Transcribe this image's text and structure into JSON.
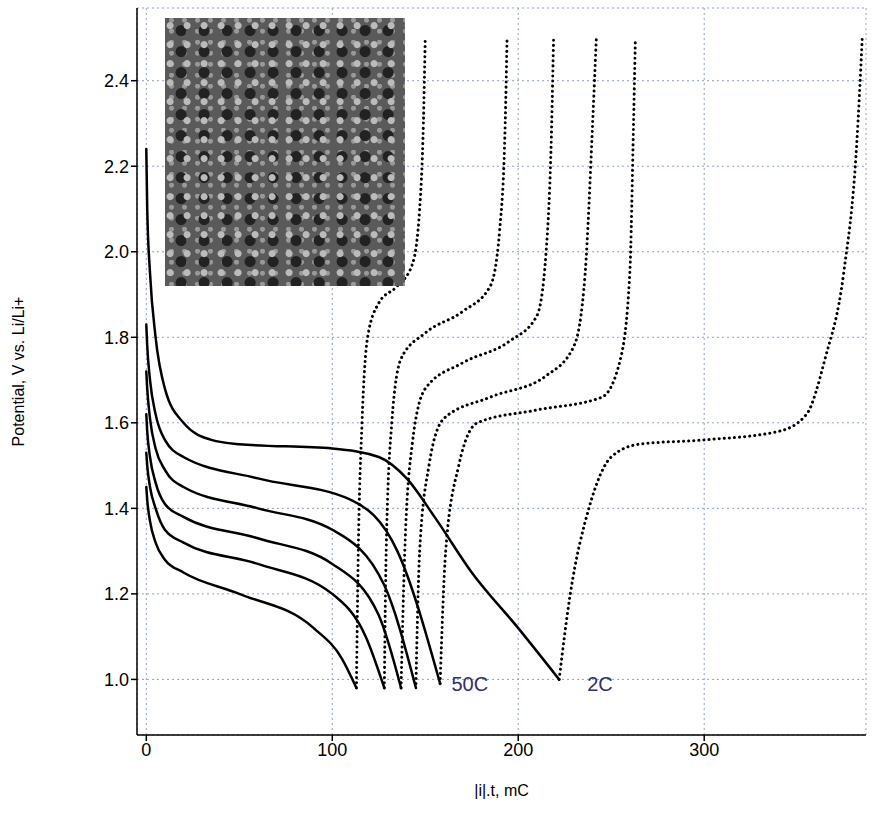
{
  "chart_data": {
    "type": "line",
    "x_label": "|i|.t, mC",
    "y_label": "Potential, V vs. Li/Li+",
    "xlim": [
      -5,
      387
    ],
    "xticks": [
      0,
      100,
      200,
      300
    ],
    "ylim": [
      0.87,
      2.57
    ],
    "yticks": [
      {
        "value": 1,
        "label": "1.0"
      },
      1.2,
      1.4,
      1.6,
      1.8,
      {
        "value": 2,
        "label": "2.0"
      },
      2.2,
      2.4
    ],
    "grid": true,
    "color": "#000000",
    "series": [
      {
        "line_style": "solid",
        "x": [
          0,
          0.5,
          2,
          5,
          10,
          20,
          50,
          90,
          105,
          113
        ],
        "values": [
          1.45,
          1.42,
          1.37,
          1.32,
          1.28,
          1.25,
          1.2,
          1.12,
          1.05,
          0.98
        ]
      },
      {
        "line_style": "solid",
        "x": [
          0,
          0.5,
          2,
          5,
          10,
          20,
          60,
          100,
          118,
          128
        ],
        "values": [
          1.53,
          1.5,
          1.45,
          1.4,
          1.35,
          1.32,
          1.27,
          1.2,
          1.1,
          0.98
        ]
      },
      {
        "line_style": "solid",
        "x": [
          0,
          0.5,
          2,
          5,
          10,
          20,
          60,
          100,
          125,
          137
        ],
        "values": [
          1.62,
          1.58,
          1.52,
          1.46,
          1.41,
          1.38,
          1.33,
          1.27,
          1.15,
          0.98
        ]
      },
      {
        "line_style": "solid",
        "x": [
          0,
          0.5,
          2,
          5,
          10,
          20,
          60,
          100,
          128,
          145
        ],
        "values": [
          1.72,
          1.68,
          1.61,
          1.54,
          1.49,
          1.45,
          1.4,
          1.35,
          1.22,
          0.98
        ]
      },
      {
        "line_style": "solid",
        "x": [
          0,
          0.5,
          2,
          5,
          10,
          20,
          60,
          110,
          135,
          158
        ],
        "values": [
          1.83,
          1.78,
          1.7,
          1.62,
          1.56,
          1.52,
          1.47,
          1.42,
          1.3,
          0.99
        ]
      },
      {
        "line_style": "solid",
        "x": [
          0,
          0.5,
          2,
          5,
          10,
          20,
          35,
          50,
          100,
          125,
          140,
          155,
          175,
          200,
          222
        ],
        "values": [
          2.24,
          2.1,
          1.95,
          1.8,
          1.68,
          1.6,
          1.56,
          1.55,
          1.54,
          1.52,
          1.47,
          1.38,
          1.25,
          1.12,
          1.0
        ]
      },
      {
        "line_style": "dotted",
        "x": [
          113,
          114,
          116,
          119,
          125,
          135,
          143,
          147,
          149,
          150
        ],
        "values": [
          0.98,
          1.3,
          1.6,
          1.8,
          1.88,
          1.92,
          1.97,
          2.1,
          2.3,
          2.5
        ]
      },
      {
        "line_style": "dotted",
        "x": [
          128,
          129,
          132,
          137,
          150,
          170,
          185,
          190,
          193,
          194
        ],
        "values": [
          0.98,
          1.3,
          1.6,
          1.75,
          1.81,
          1.86,
          1.92,
          2.05,
          2.3,
          2.5
        ]
      },
      {
        "line_style": "dotted",
        "x": [
          137,
          139,
          143,
          150,
          170,
          195,
          210,
          215,
          218,
          219
        ],
        "values": [
          0.98,
          1.3,
          1.55,
          1.68,
          1.74,
          1.79,
          1.85,
          2.0,
          2.3,
          2.5
        ]
      },
      {
        "line_style": "dotted",
        "x": [
          145,
          147,
          152,
          160,
          185,
          215,
          230,
          236,
          240,
          242
        ],
        "values": [
          0.99,
          1.3,
          1.5,
          1.61,
          1.66,
          1.71,
          1.78,
          1.95,
          2.3,
          2.5
        ]
      },
      {
        "line_style": "dotted",
        "x": [
          158,
          161,
          168,
          178,
          210,
          245,
          255,
          260,
          262,
          263
        ],
        "values": [
          0.99,
          1.3,
          1.5,
          1.6,
          1.63,
          1.66,
          1.75,
          1.95,
          2.3,
          2.5
        ]
      },
      {
        "line_style": "dotted",
        "x": [
          222,
          228,
          238,
          250,
          265,
          300,
          340,
          355,
          365,
          375,
          382,
          385
        ],
        "values": [
          1.0,
          1.2,
          1.4,
          1.52,
          1.55,
          1.56,
          1.58,
          1.62,
          1.75,
          1.95,
          2.25,
          2.5
        ]
      }
    ],
    "annotations": [
      {
        "text": "50C",
        "x": 163,
        "y": 0.99
      },
      {
        "text": "2C",
        "x": 236,
        "y": 0.99
      }
    ]
  }
}
